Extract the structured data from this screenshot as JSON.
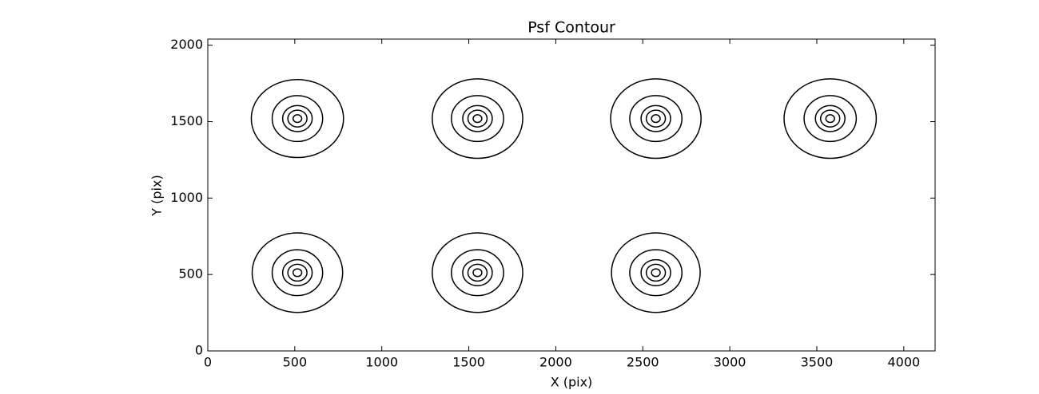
{
  "chart_data": {
    "type": "contour",
    "title": "Psf Contour",
    "x_label": "X (pix)",
    "y_label": "Y (pix)",
    "xlim": [
      0,
      4180
    ],
    "ylim": [
      0,
      2040
    ],
    "xticks": [
      0,
      500,
      1000,
      1500,
      2000,
      2500,
      3000,
      3500,
      4000
    ],
    "yticks": [
      0,
      500,
      1000,
      1500,
      2000
    ],
    "color": "#000000",
    "sources": [
      {
        "x": 515,
        "y": 1520,
        "rx": [
          265,
          145,
          85,
          55,
          25
        ],
        "ry": [
          255,
          150,
          85,
          55,
          25
        ]
      },
      {
        "x": 1550,
        "y": 1520,
        "rx": [
          260,
          150,
          85,
          55,
          25
        ],
        "ry": [
          260,
          150,
          85,
          55,
          25
        ]
      },
      {
        "x": 2575,
        "y": 1520,
        "rx": [
          260,
          150,
          85,
          55,
          25
        ],
        "ry": [
          260,
          150,
          85,
          55,
          25
        ]
      },
      {
        "x": 3577,
        "y": 1520,
        "rx": [
          265,
          150,
          85,
          55,
          25
        ],
        "ry": [
          260,
          150,
          85,
          55,
          25
        ]
      },
      {
        "x": 515,
        "y": 512,
        "rx": [
          260,
          145,
          85,
          55,
          25
        ],
        "ry": [
          260,
          150,
          85,
          55,
          25
        ]
      },
      {
        "x": 1550,
        "y": 512,
        "rx": [
          260,
          150,
          85,
          55,
          25
        ],
        "ry": [
          260,
          150,
          85,
          55,
          25
        ]
      },
      {
        "x": 2575,
        "y": 512,
        "rx": [
          255,
          150,
          85,
          55,
          25
        ],
        "ry": [
          260,
          150,
          85,
          55,
          25
        ]
      }
    ]
  }
}
